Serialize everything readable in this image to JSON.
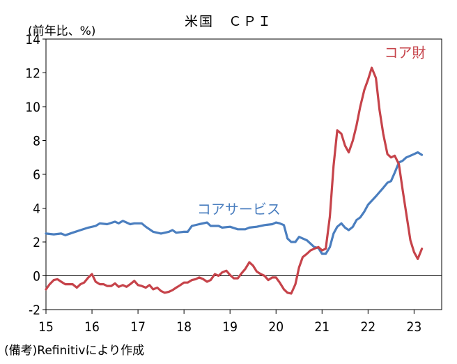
{
  "chart_data": {
    "type": "line",
    "title": "米国　ＣＰＩ",
    "ylabel": "(前年比、%)",
    "note": "(備考)Refinitivにより作成",
    "x_ticks": [
      "15",
      "16",
      "17",
      "18",
      "19",
      "20",
      "21",
      "22",
      "23"
    ],
    "xlim": [
      2015.0,
      2023.6
    ],
    "ylim": [
      -2,
      14
    ],
    "y_ticks": [
      -2,
      0,
      2,
      4,
      6,
      8,
      10,
      12,
      14
    ],
    "grid": false,
    "zero_line": true,
    "series": [
      {
        "name": "コアサービス",
        "color": "#4a7ebf",
        "label_color": "#4a7ebf",
        "points": [
          [
            2015.0,
            2.5
          ],
          [
            2015.17,
            2.45
          ],
          [
            2015.33,
            2.5
          ],
          [
            2015.42,
            2.4
          ],
          [
            2015.58,
            2.55
          ],
          [
            2015.75,
            2.7
          ],
          [
            2015.92,
            2.85
          ],
          [
            2016.08,
            2.95
          ],
          [
            2016.17,
            3.1
          ],
          [
            2016.33,
            3.05
          ],
          [
            2016.5,
            3.2
          ],
          [
            2016.58,
            3.1
          ],
          [
            2016.67,
            3.25
          ],
          [
            2016.83,
            3.05
          ],
          [
            2016.92,
            3.1
          ],
          [
            2017.08,
            3.1
          ],
          [
            2017.17,
            2.9
          ],
          [
            2017.33,
            2.6
          ],
          [
            2017.5,
            2.5
          ],
          [
            2017.67,
            2.6
          ],
          [
            2017.75,
            2.7
          ],
          [
            2017.83,
            2.55
          ],
          [
            2018.0,
            2.6
          ],
          [
            2018.08,
            2.6
          ],
          [
            2018.17,
            2.95
          ],
          [
            2018.33,
            3.05
          ],
          [
            2018.5,
            3.15
          ],
          [
            2018.58,
            2.95
          ],
          [
            2018.75,
            2.95
          ],
          [
            2018.83,
            2.85
          ],
          [
            2019.0,
            2.9
          ],
          [
            2019.17,
            2.75
          ],
          [
            2019.33,
            2.75
          ],
          [
            2019.42,
            2.85
          ],
          [
            2019.58,
            2.9
          ],
          [
            2019.75,
            3.0
          ],
          [
            2019.92,
            3.05
          ],
          [
            2020.0,
            3.15
          ],
          [
            2020.08,
            3.1
          ],
          [
            2020.17,
            3.0
          ],
          [
            2020.25,
            2.2
          ],
          [
            2020.33,
            2.0
          ],
          [
            2020.42,
            2.0
          ],
          [
            2020.5,
            2.3
          ],
          [
            2020.67,
            2.1
          ],
          [
            2020.83,
            1.7
          ],
          [
            2020.92,
            1.65
          ],
          [
            2021.0,
            1.3
          ],
          [
            2021.08,
            1.3
          ],
          [
            2021.17,
            1.7
          ],
          [
            2021.25,
            2.5
          ],
          [
            2021.33,
            2.9
          ],
          [
            2021.42,
            3.1
          ],
          [
            2021.5,
            2.85
          ],
          [
            2021.58,
            2.7
          ],
          [
            2021.67,
            2.9
          ],
          [
            2021.75,
            3.3
          ],
          [
            2021.83,
            3.45
          ],
          [
            2021.92,
            3.8
          ],
          [
            2022.0,
            4.2
          ],
          [
            2022.17,
            4.7
          ],
          [
            2022.25,
            4.95
          ],
          [
            2022.33,
            5.2
          ],
          [
            2022.42,
            5.5
          ],
          [
            2022.5,
            5.6
          ],
          [
            2022.58,
            6.1
          ],
          [
            2022.67,
            6.7
          ],
          [
            2022.75,
            6.8
          ],
          [
            2022.83,
            7.0
          ],
          [
            2022.92,
            7.1
          ],
          [
            2023.0,
            7.2
          ],
          [
            2023.08,
            7.3
          ],
          [
            2023.17,
            7.15
          ]
        ]
      },
      {
        "name": "コア財",
        "color": "#c6434a",
        "label_color": "#c6434a",
        "points": [
          [
            2015.0,
            -0.8
          ],
          [
            2015.08,
            -0.5
          ],
          [
            2015.17,
            -0.25
          ],
          [
            2015.25,
            -0.2
          ],
          [
            2015.33,
            -0.35
          ],
          [
            2015.42,
            -0.5
          ],
          [
            2015.58,
            -0.5
          ],
          [
            2015.67,
            -0.7
          ],
          [
            2015.75,
            -0.5
          ],
          [
            2015.83,
            -0.4
          ],
          [
            2015.92,
            -0.1
          ],
          [
            2016.0,
            0.1
          ],
          [
            2016.08,
            -0.35
          ],
          [
            2016.17,
            -0.5
          ],
          [
            2016.25,
            -0.5
          ],
          [
            2016.33,
            -0.6
          ],
          [
            2016.42,
            -0.6
          ],
          [
            2016.5,
            -0.45
          ],
          [
            2016.58,
            -0.65
          ],
          [
            2016.67,
            -0.55
          ],
          [
            2016.75,
            -0.65
          ],
          [
            2016.83,
            -0.5
          ],
          [
            2016.92,
            -0.3
          ],
          [
            2017.0,
            -0.55
          ],
          [
            2017.08,
            -0.6
          ],
          [
            2017.17,
            -0.7
          ],
          [
            2017.25,
            -0.55
          ],
          [
            2017.33,
            -0.8
          ],
          [
            2017.42,
            -0.7
          ],
          [
            2017.5,
            -0.9
          ],
          [
            2017.58,
            -1.0
          ],
          [
            2017.67,
            -0.95
          ],
          [
            2017.75,
            -0.85
          ],
          [
            2017.83,
            -0.7
          ],
          [
            2017.92,
            -0.55
          ],
          [
            2018.0,
            -0.4
          ],
          [
            2018.08,
            -0.4
          ],
          [
            2018.17,
            -0.25
          ],
          [
            2018.25,
            -0.2
          ],
          [
            2018.33,
            -0.1
          ],
          [
            2018.42,
            -0.2
          ],
          [
            2018.5,
            -0.35
          ],
          [
            2018.58,
            -0.25
          ],
          [
            2018.67,
            0.1
          ],
          [
            2018.75,
            0.0
          ],
          [
            2018.83,
            0.2
          ],
          [
            2018.92,
            0.3
          ],
          [
            2019.0,
            0.05
          ],
          [
            2019.08,
            -0.15
          ],
          [
            2019.17,
            -0.15
          ],
          [
            2019.25,
            0.15
          ],
          [
            2019.33,
            0.4
          ],
          [
            2019.42,
            0.8
          ],
          [
            2019.5,
            0.6
          ],
          [
            2019.58,
            0.25
          ],
          [
            2019.67,
            0.1
          ],
          [
            2019.75,
            0.0
          ],
          [
            2019.83,
            -0.25
          ],
          [
            2019.92,
            -0.1
          ],
          [
            2020.0,
            -0.1
          ],
          [
            2020.08,
            -0.4
          ],
          [
            2020.17,
            -0.8
          ],
          [
            2020.25,
            -1.0
          ],
          [
            2020.33,
            -1.05
          ],
          [
            2020.42,
            -0.5
          ],
          [
            2020.5,
            0.5
          ],
          [
            2020.58,
            1.1
          ],
          [
            2020.67,
            1.3
          ],
          [
            2020.75,
            1.5
          ],
          [
            2020.83,
            1.6
          ],
          [
            2020.92,
            1.7
          ],
          [
            2021.0,
            1.5
          ],
          [
            2021.08,
            1.6
          ],
          [
            2021.17,
            3.5
          ],
          [
            2021.25,
            6.5
          ],
          [
            2021.33,
            8.6
          ],
          [
            2021.42,
            8.4
          ],
          [
            2021.5,
            7.7
          ],
          [
            2021.58,
            7.3
          ],
          [
            2021.67,
            8.0
          ],
          [
            2021.75,
            8.9
          ],
          [
            2021.83,
            10.0
          ],
          [
            2021.92,
            11.0
          ],
          [
            2022.0,
            11.6
          ],
          [
            2022.08,
            12.3
          ],
          [
            2022.17,
            11.7
          ],
          [
            2022.25,
            9.8
          ],
          [
            2022.33,
            8.4
          ],
          [
            2022.42,
            7.2
          ],
          [
            2022.5,
            7.0
          ],
          [
            2022.58,
            7.1
          ],
          [
            2022.67,
            6.6
          ],
          [
            2022.75,
            5.1
          ],
          [
            2022.83,
            3.7
          ],
          [
            2022.92,
            2.1
          ],
          [
            2023.0,
            1.4
          ],
          [
            2023.08,
            1.0
          ],
          [
            2023.17,
            1.6
          ]
        ]
      }
    ]
  }
}
